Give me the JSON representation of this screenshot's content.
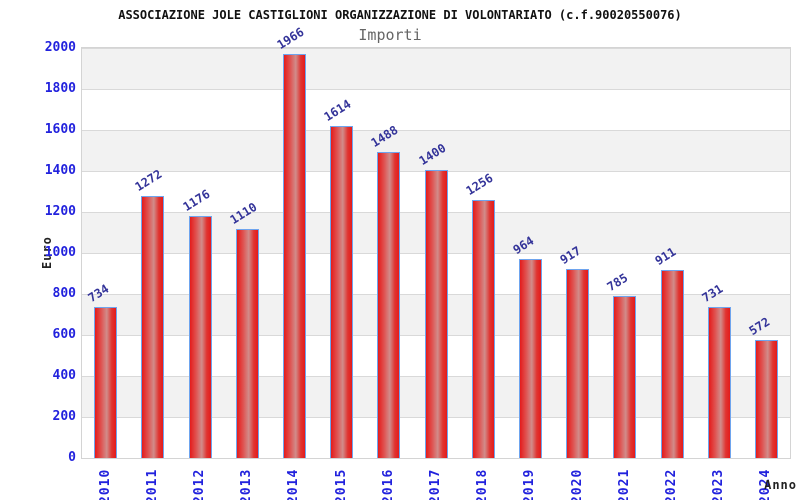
{
  "page": {
    "title": "ASSOCIAZIONE JOLE CASTIGLIONI ORGANIZZAZIONE DI VOLONTARIATO (c.f.90020550076)",
    "subtitle": "Importi"
  },
  "chart_data": {
    "type": "bar",
    "title": "ASSOCIAZIONE JOLE CASTIGLIONI ORGANIZZAZIONE DI VOLONTARIATO (c.f.90020550076)",
    "subtitle": "Importi",
    "categories": [
      "2010",
      "2011",
      "2012",
      "2013",
      "2014",
      "2015",
      "2016",
      "2017",
      "2018",
      "2019",
      "2020",
      "2021",
      "2022",
      "2023",
      "2024"
    ],
    "values": [
      734,
      1272,
      1176,
      1110,
      1966,
      1614,
      1488,
      1400,
      1256,
      964,
      917,
      785,
      911,
      731,
      572
    ],
    "xlabel": "Anno",
    "ylabel": "Euro",
    "ylim": [
      0,
      2000
    ],
    "ytick_step": 200,
    "grid": "horizontal-bands",
    "legend": "none",
    "colors": {
      "bar_red": "#e41b1b",
      "bar_highlight": "#d18c8a",
      "bar_border": "#6ea4ee",
      "axis_tick_label": "#2222dd",
      "value_label": "#333399",
      "band_gray": "#f2f2f2",
      "gridline": "#d9d9d9",
      "subtitle_gray": "#666666",
      "title_black": "#111111"
    }
  }
}
